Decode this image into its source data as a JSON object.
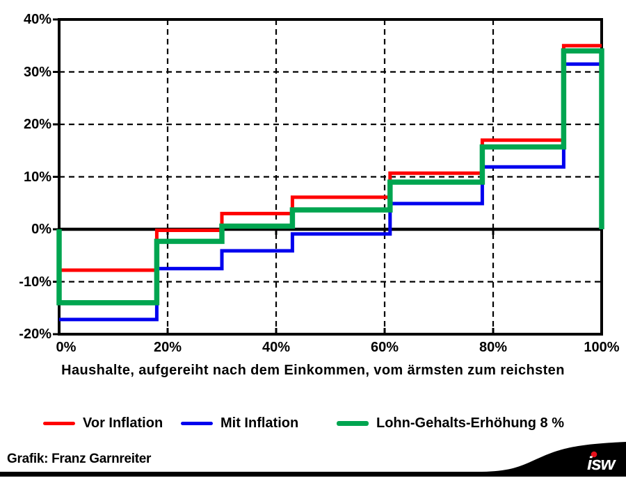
{
  "chart_data": {
    "type": "line",
    "subtype": "step",
    "title": "",
    "xlabel": "Haushalte, aufgereiht nach dem Einkommen, vom ärmsten zum reichsten",
    "ylabel": "",
    "xlim": [
      0,
      100
    ],
    "ylim": [
      -20,
      40
    ],
    "x_tick_labels": [
      "0%",
      "20%",
      "40%",
      "60%",
      "80%",
      "100%"
    ],
    "x_tick_values": [
      0,
      20,
      40,
      60,
      80,
      100
    ],
    "y_tick_labels": [
      "40%",
      "30%",
      "20%",
      "10%",
      "0%",
      "-10%",
      "-20%"
    ],
    "y_tick_values": [
      40,
      30,
      20,
      10,
      0,
      -10,
      -20
    ],
    "grid": {
      "style": "dashed",
      "x_values": [
        20,
        40,
        60,
        80
      ],
      "y_values": [
        30,
        20,
        10,
        -10
      ],
      "zero_line": 0
    },
    "segment_boundaries_pct": [
      0,
      18,
      30,
      43,
      61,
      78,
      93,
      100
    ],
    "series": [
      {
        "name": "Vor Inflation",
        "color": "#ff0000",
        "line_width": 5,
        "values_pct": [
          -7.8,
          -0.2,
          3.0,
          6.1,
          10.7,
          17.0,
          35.0
        ],
        "closes_to_zero_at_edges": false
      },
      {
        "name": "Mit Inflation",
        "color": "#0000ee",
        "line_width": 5,
        "values_pct": [
          -17.2,
          -7.5,
          -4.1,
          -0.9,
          4.9,
          11.9,
          31.5
        ],
        "closes_to_zero_at_edges": false
      },
      {
        "name": "Lohn-Gehalts-Erhöhung 8 %",
        "color": "#00a550",
        "line_width": 7.5,
        "values_pct": [
          -14.0,
          -2.3,
          0.6,
          3.7,
          9.0,
          15.7,
          34.0
        ],
        "closes_to_zero_at_edges": true
      }
    ],
    "legend_position": "bottom"
  },
  "footer": {
    "credit": "Grafik: Franz Garnreiter",
    "logo_text": "isw",
    "logo_dot_color": "#e8111c",
    "bar_color": "#000000"
  }
}
